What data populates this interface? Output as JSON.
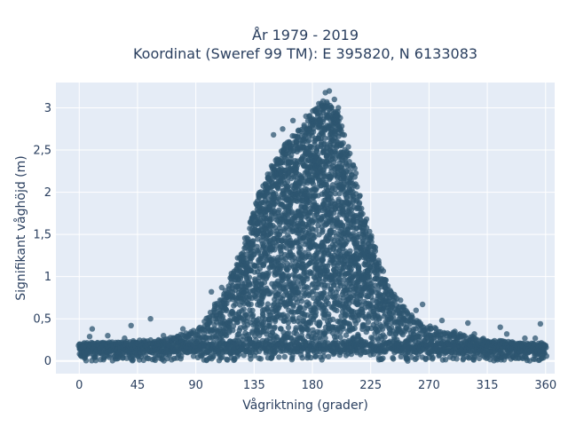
{
  "chart_data": {
    "type": "scatter",
    "title_lines": [
      "År 1979 - 2019",
      "Koordinat (Sweref 99 TM): E 395820, N 6133083"
    ],
    "xlabel": "Vågriktning (grader)",
    "ylabel": "Signifikant våghöjd (m)",
    "xlim": [
      -18,
      367
    ],
    "ylim": [
      -0.15,
      3.3
    ],
    "x_ticks": [
      0,
      45,
      90,
      135,
      180,
      225,
      270,
      315,
      360
    ],
    "x_tick_labels": [
      "0",
      "45",
      "90",
      "135",
      "180",
      "225",
      "270",
      "315",
      "360"
    ],
    "y_ticks": [
      0,
      0.5,
      1,
      1.5,
      2,
      2.5,
      3
    ],
    "y_tick_labels": [
      "0",
      "0,5",
      "1",
      "1,5",
      "2",
      "2,5",
      "3"
    ],
    "grid": true,
    "legend": "none",
    "marker_color": "#2e5670",
    "background_color": "#e5ecf6",
    "envelope": {
      "x": [
        0,
        20,
        40,
        60,
        75,
        90,
        100,
        110,
        120,
        130,
        140,
        150,
        160,
        170,
        180,
        190,
        200,
        210,
        220,
        230,
        240,
        250,
        260,
        270,
        285,
        300,
        320,
        340,
        360
      ],
      "y_max": [
        0.2,
        0.22,
        0.24,
        0.26,
        0.3,
        0.38,
        0.55,
        0.8,
        1.1,
        1.55,
        2.05,
        2.35,
        2.6,
        2.75,
        2.95,
        3.1,
        2.95,
        2.45,
        1.75,
        1.25,
        0.85,
        0.65,
        0.5,
        0.42,
        0.35,
        0.3,
        0.25,
        0.22,
        0.2
      ]
    },
    "outliers": [
      {
        "x": 3,
        "y": 0.17
      },
      {
        "x": 8,
        "y": 0.29
      },
      {
        "x": 10,
        "y": 0.38
      },
      {
        "x": 22,
        "y": 0.3
      },
      {
        "x": 30,
        "y": 0.22
      },
      {
        "x": 35,
        "y": 0.27
      },
      {
        "x": 40,
        "y": 0.42
      },
      {
        "x": 55,
        "y": 0.5
      },
      {
        "x": 65,
        "y": 0.3
      },
      {
        "x": 80,
        "y": 0.38
      },
      {
        "x": 102,
        "y": 0.82
      },
      {
        "x": 110,
        "y": 0.87
      },
      {
        "x": 150,
        "y": 2.68
      },
      {
        "x": 157,
        "y": 2.75
      },
      {
        "x": 165,
        "y": 2.85
      },
      {
        "x": 175,
        "y": 2.9
      },
      {
        "x": 185,
        "y": 3.05
      },
      {
        "x": 190,
        "y": 3.18
      },
      {
        "x": 193,
        "y": 3.2
      },
      {
        "x": 197,
        "y": 3.1
      },
      {
        "x": 200,
        "y": 3.0
      },
      {
        "x": 240,
        "y": 0.75
      },
      {
        "x": 248,
        "y": 0.72
      },
      {
        "x": 260,
        "y": 0.6
      },
      {
        "x": 265,
        "y": 0.67
      },
      {
        "x": 280,
        "y": 0.48
      },
      {
        "x": 290,
        "y": 0.35
      },
      {
        "x": 300,
        "y": 0.45
      },
      {
        "x": 305,
        "y": 0.32
      },
      {
        "x": 325,
        "y": 0.4
      },
      {
        "x": 330,
        "y": 0.32
      },
      {
        "x": 344,
        "y": 0.27
      },
      {
        "x": 352,
        "y": 0.27
      },
      {
        "x": 356,
        "y": 0.44
      }
    ]
  }
}
